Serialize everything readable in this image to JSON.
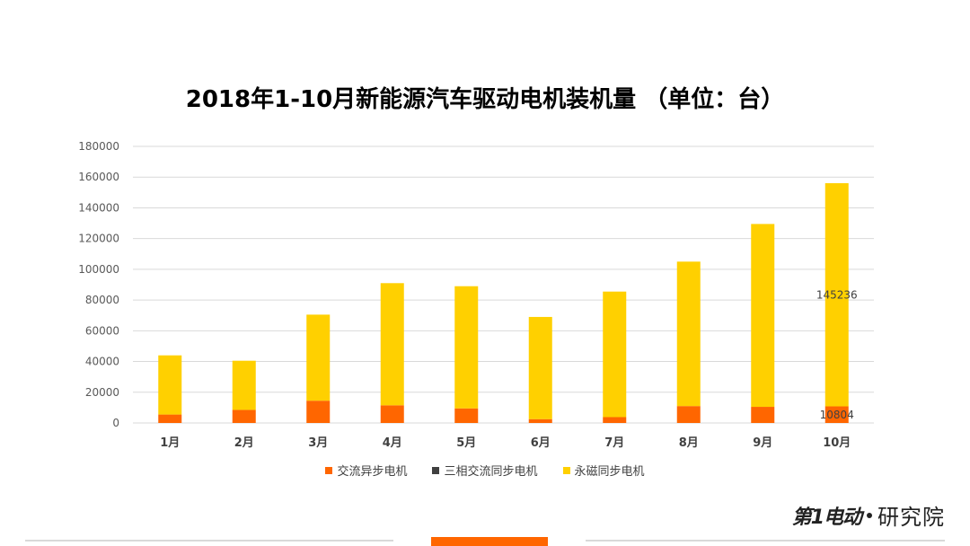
{
  "chart_data": {
    "type": "bar",
    "stacked": true,
    "title": "2018年1-10月新能源汽车驱动电机装机量 （单位：台）",
    "categories": [
      "1月",
      "2月",
      "3月",
      "4月",
      "5月",
      "6月",
      "7月",
      "8月",
      "9月",
      "10月"
    ],
    "series": [
      {
        "name": "交流异步电机",
        "color": "#ff6600",
        "values": [
          5500,
          8500,
          14500,
          11500,
          9500,
          2500,
          3800,
          11000,
          10500,
          10804
        ]
      },
      {
        "name": "三相交流同步电机",
        "color": "#404040",
        "values": [
          0,
          0,
          0,
          0,
          0,
          0,
          0,
          0,
          0,
          0
        ]
      },
      {
        "name": "永磁同步电机",
        "color": "#ffd000",
        "values": [
          38500,
          32000,
          56000,
          79500,
          79500,
          66500,
          81700,
          94000,
          119000,
          145236
        ]
      }
    ],
    "data_labels": [
      {
        "category": "10月",
        "series": "永磁同步电机",
        "text": "145236"
      },
      {
        "category": "10月",
        "series": "交流异步电机",
        "text": "10804"
      }
    ],
    "ylim": [
      0,
      180000
    ],
    "yticks": [
      0,
      20000,
      40000,
      60000,
      80000,
      100000,
      120000,
      140000,
      160000,
      180000
    ],
    "grid": true,
    "legend": "bottom"
  },
  "brand": {
    "logo_text": "第1电动",
    "name": "研究院"
  }
}
